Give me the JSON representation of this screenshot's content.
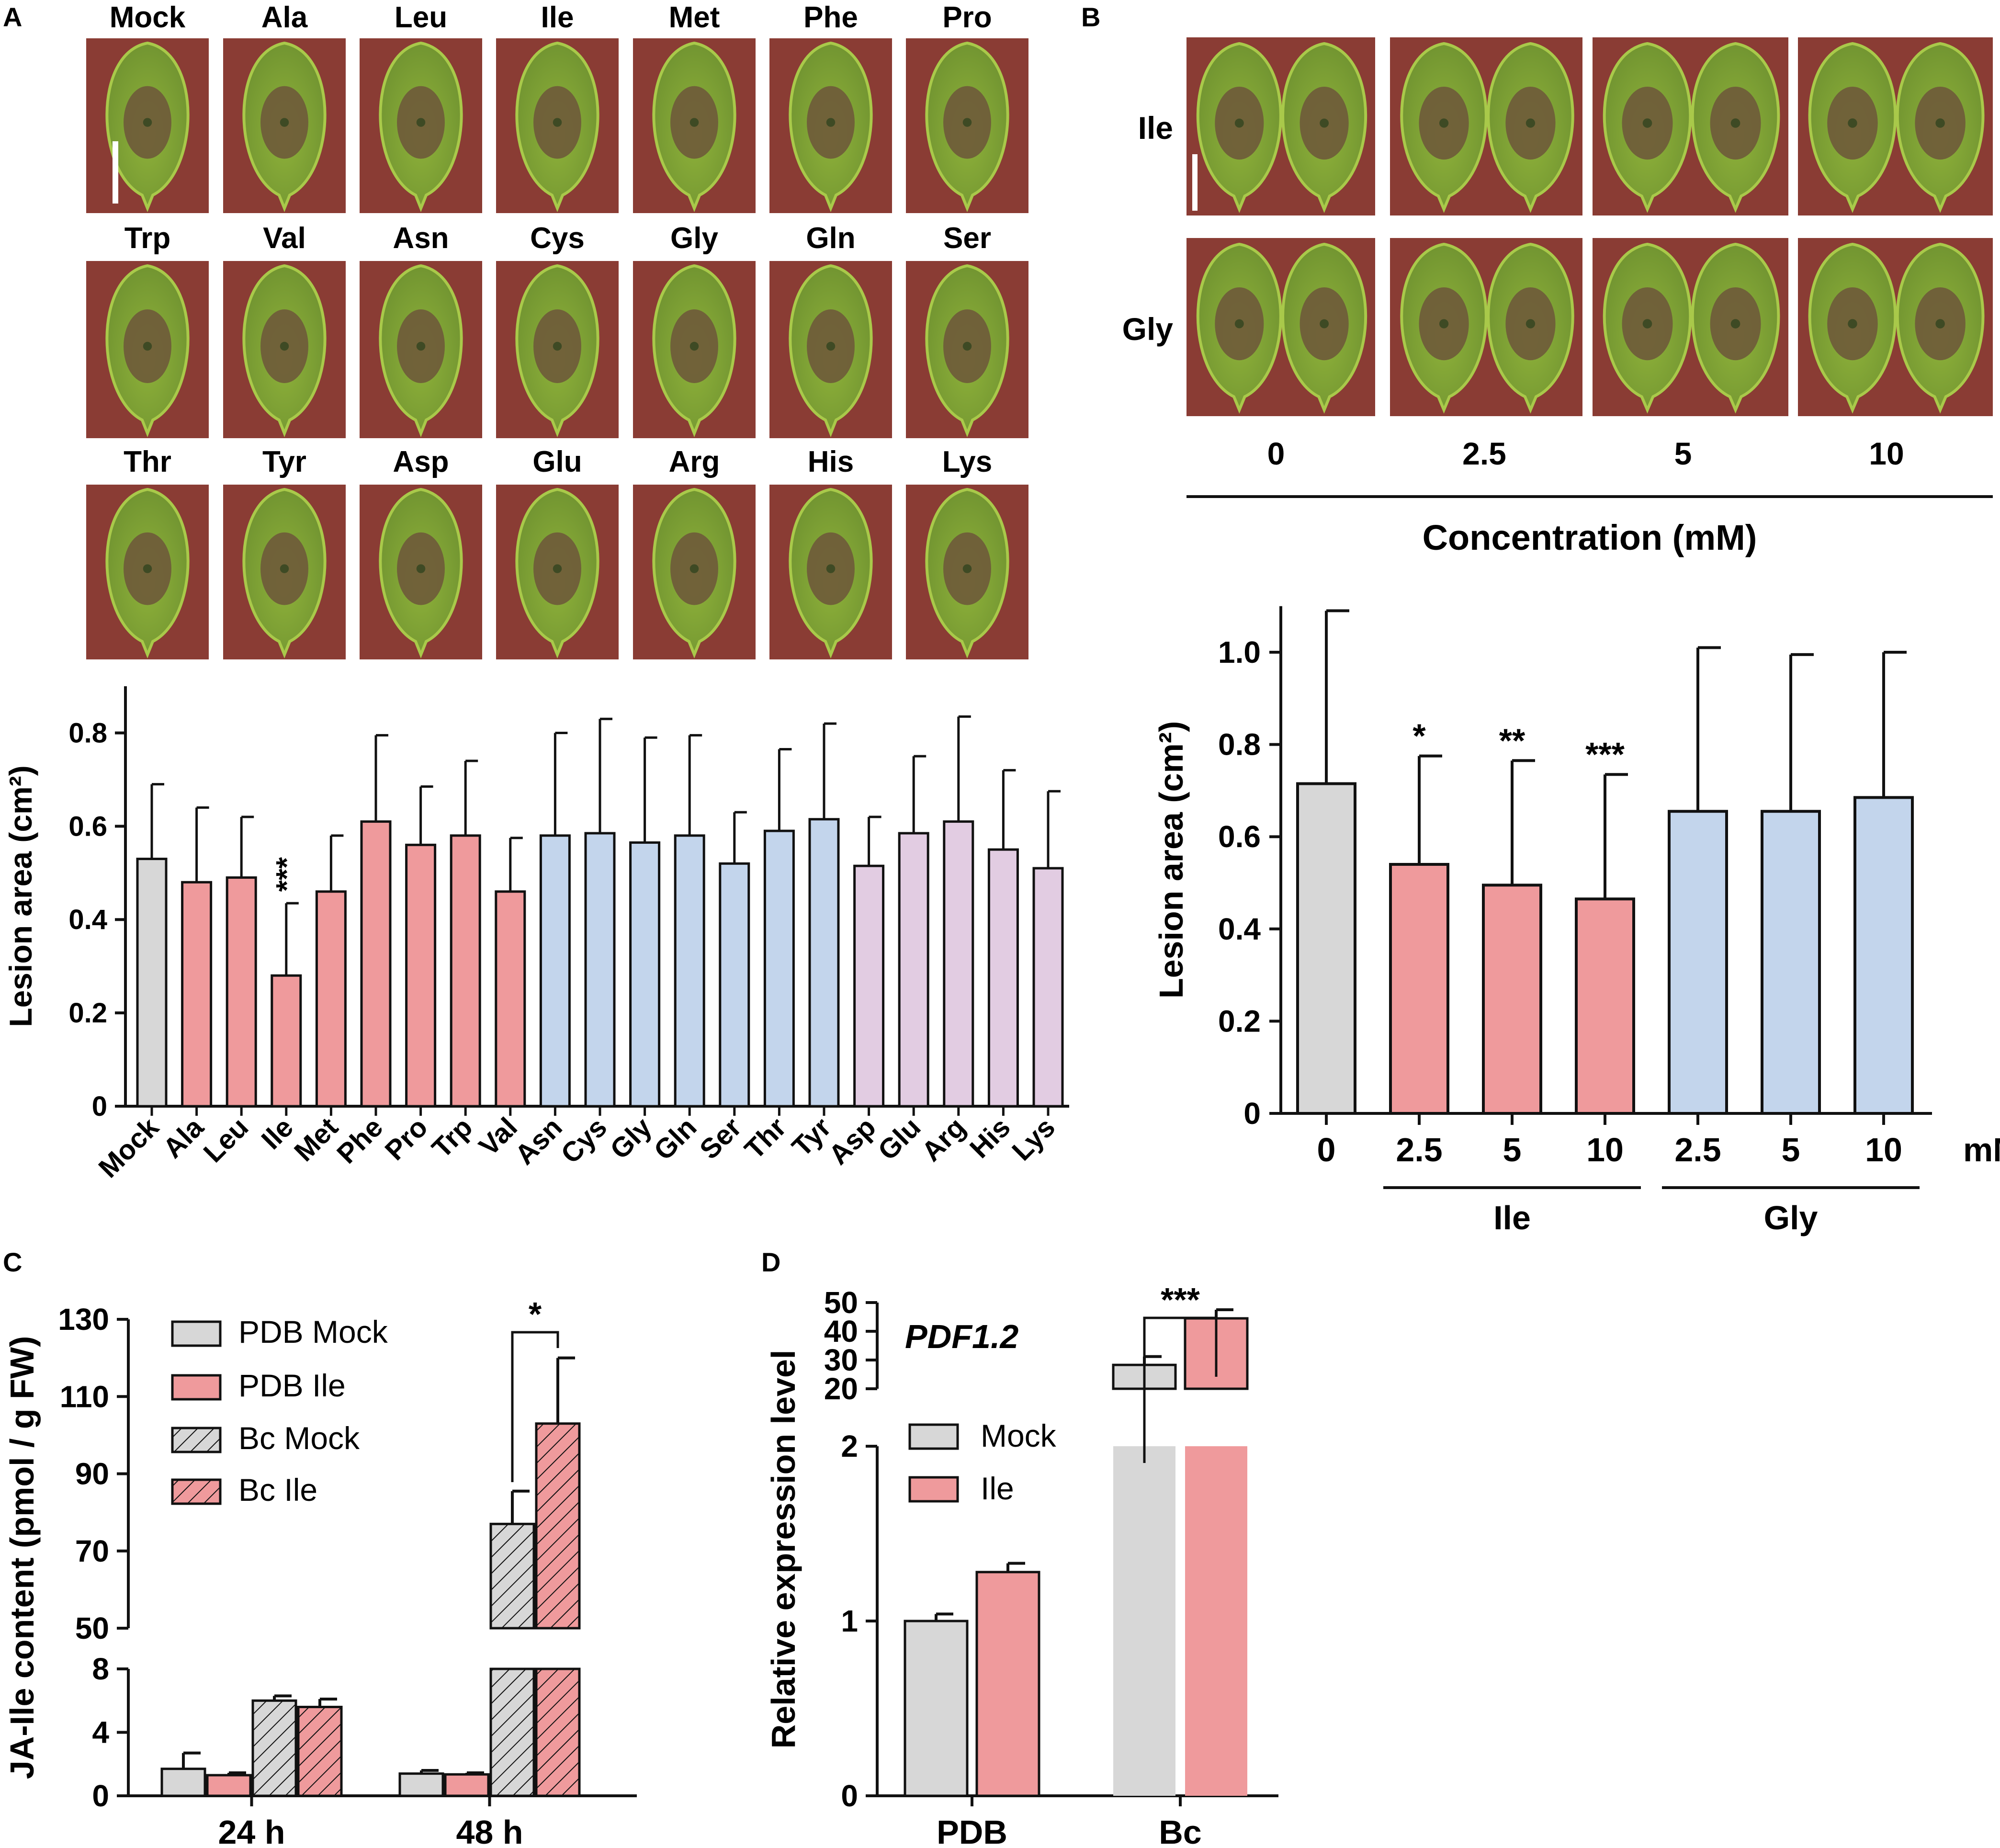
{
  "figure": {
    "colors": {
      "mock": "#d7d7d7",
      "nonpolar": "#ef9a9c",
      "polar": "#c3d5ec",
      "charged": "#e2cce2",
      "leaf_light": "#a9c94a",
      "leaf_dark": "#6f9230",
      "lesion": "#6e5a3a",
      "bg_photo": "#8a3c34",
      "axis": "#111111"
    },
    "panel_a": {
      "letter": "A",
      "photo_grid": [
        [
          "Mock",
          "Ala",
          "Leu",
          "Ile",
          "Met",
          "Phe",
          "Pro"
        ],
        [
          "Trp",
          "Val",
          "Asn",
          "Cys",
          "Gly",
          "Gln",
          "Ser"
        ],
        [
          "Thr",
          "Tyr",
          "Asp",
          "Glu",
          "Arg",
          "His",
          "Lys"
        ]
      ],
      "chart_data": {
        "type": "bar",
        "ylabel": "Lesion area (cm²)",
        "ylim": [
          0,
          0.9
        ],
        "yticks": [
          {
            "v": 0,
            "label": "0"
          },
          {
            "v": 0.2,
            "label": "0.2"
          },
          {
            "v": 0.4,
            "label": "0.4"
          },
          {
            "v": 0.6,
            "label": "0.6"
          },
          {
            "v": 0.8,
            "label": "0.8"
          }
        ],
        "bars": [
          {
            "label": "Mock",
            "value": 0.53,
            "err": 0.16,
            "group": "mock"
          },
          {
            "label": "Ala",
            "value": 0.48,
            "err": 0.16,
            "group": "nonpolar"
          },
          {
            "label": "Leu",
            "value": 0.49,
            "err": 0.13,
            "group": "nonpolar"
          },
          {
            "label": "Ile",
            "value": 0.28,
            "err": 0.155,
            "group": "nonpolar",
            "sig": "***"
          },
          {
            "label": "Met",
            "value": 0.46,
            "err": 0.12,
            "group": "nonpolar"
          },
          {
            "label": "Phe",
            "value": 0.61,
            "err": 0.185,
            "group": "nonpolar"
          },
          {
            "label": "Pro",
            "value": 0.56,
            "err": 0.125,
            "group": "nonpolar"
          },
          {
            "label": "Trp",
            "value": 0.58,
            "err": 0.16,
            "group": "nonpolar"
          },
          {
            "label": "Val",
            "value": 0.46,
            "err": 0.115,
            "group": "nonpolar"
          },
          {
            "label": "Asn",
            "value": 0.58,
            "err": 0.22,
            "group": "polar"
          },
          {
            "label": "Cys",
            "value": 0.585,
            "err": 0.245,
            "group": "polar"
          },
          {
            "label": "Gly",
            "value": 0.565,
            "err": 0.225,
            "group": "polar"
          },
          {
            "label": "Gln",
            "value": 0.58,
            "err": 0.215,
            "group": "polar"
          },
          {
            "label": "Ser",
            "value": 0.52,
            "err": 0.11,
            "group": "polar"
          },
          {
            "label": "Thr",
            "value": 0.59,
            "err": 0.175,
            "group": "polar"
          },
          {
            "label": "Tyr",
            "value": 0.615,
            "err": 0.205,
            "group": "polar"
          },
          {
            "label": "Asp",
            "value": 0.515,
            "err": 0.105,
            "group": "charged"
          },
          {
            "label": "Glu",
            "value": 0.585,
            "err": 0.165,
            "group": "charged"
          },
          {
            "label": "Arg",
            "value": 0.61,
            "err": 0.225,
            "group": "charged"
          },
          {
            "label": "His",
            "value": 0.55,
            "err": 0.17,
            "group": "charged"
          },
          {
            "label": "Lys",
            "value": 0.51,
            "err": 0.165,
            "group": "charged"
          }
        ]
      }
    },
    "panel_b": {
      "letter": "B",
      "photo_rows": [
        "Ile",
        "Gly"
      ],
      "photo_cols": [
        "0",
        "2.5",
        "5",
        "10"
      ],
      "photo_axis_label": "Concentration (mM)",
      "chart_data": {
        "type": "bar",
        "ylabel": "Lesion area (cm²)",
        "ylim": [
          0,
          1.1
        ],
        "yticks": [
          {
            "v": 0,
            "label": "0"
          },
          {
            "v": 0.2,
            "label": "0.2"
          },
          {
            "v": 0.4,
            "label": "0.4"
          },
          {
            "v": 0.6,
            "label": "0.6"
          },
          {
            "v": 0.8,
            "label": "0.8"
          },
          {
            "v": 1.0,
            "label": "1.0"
          }
        ],
        "unit_label": "mM",
        "bars": [
          {
            "label": "0",
            "value": 0.715,
            "err": 0.375,
            "group": "mock"
          },
          {
            "label": "2.5",
            "value": 0.54,
            "err": 0.235,
            "group": "nonpolar",
            "sig": "*"
          },
          {
            "label": "5",
            "value": 0.495,
            "err": 0.27,
            "group": "nonpolar",
            "sig": "**"
          },
          {
            "label": "10",
            "value": 0.465,
            "err": 0.27,
            "group": "nonpolar",
            "sig": "***"
          },
          {
            "label": "2.5",
            "value": 0.655,
            "err": 0.355,
            "group": "polar"
          },
          {
            "label": "5",
            "value": 0.655,
            "err": 0.34,
            "group": "polar"
          },
          {
            "label": "10",
            "value": 0.685,
            "err": 0.315,
            "group": "polar"
          }
        ],
        "groups": [
          {
            "label": "Ile",
            "from": 1,
            "to": 3
          },
          {
            "label": "Gly",
            "from": 4,
            "to": 6
          }
        ]
      }
    },
    "panel_c": {
      "letter": "C",
      "chart_data": {
        "type": "bar",
        "ylabel": "JA-Ile content (pmol / g FW)",
        "broken_axis": true,
        "upper_range": [
          50,
          130
        ],
        "lower_range": [
          0,
          8
        ],
        "upper_ticks": [
          "50",
          "70",
          "90",
          "110",
          "130"
        ],
        "lower_ticks": [
          "0",
          "4",
          "8"
        ],
        "categories": [
          "24 h",
          "48 h"
        ],
        "legend": [
          {
            "label": "PDB Mock",
            "color": "mock",
            "hatch": false
          },
          {
            "label": "PDB Ile",
            "color": "nonpolar",
            "hatch": false
          },
          {
            "label": "Bc Mock",
            "color": "mock",
            "hatch": true
          },
          {
            "label": "Bc Ile",
            "color": "nonpolar",
            "hatch": true
          }
        ],
        "series": [
          {
            "name": "PDB Mock",
            "values": [
              1.7,
              1.4
            ],
            "errs": [
              1.0,
              0.2
            ]
          },
          {
            "name": "PDB Ile",
            "values": [
              1.3,
              1.35
            ],
            "errs": [
              0.15,
              0.1
            ]
          },
          {
            "name": "Bc Mock",
            "values": [
              6.0,
              77
            ],
            "errs": [
              0.3,
              8.5
            ]
          },
          {
            "name": "Bc Ile",
            "values": [
              5.6,
              103
            ],
            "errs": [
              0.5,
              17
            ]
          }
        ],
        "sig": {
          "label": "*",
          "category": 1
        }
      }
    },
    "panel_d": {
      "letter": "D",
      "chart_data": {
        "type": "bar",
        "ylabel": "Relative expression level",
        "gene": "PDF1.2",
        "broken_axis": true,
        "upper_range": [
          20,
          50
        ],
        "lower_range": [
          0,
          2
        ],
        "upper_ticks": [
          "20",
          "30",
          "40",
          "50"
        ],
        "lower_ticks": [
          "0",
          "1",
          "2"
        ],
        "categories": [
          "PDB",
          "Bc"
        ],
        "legend": [
          {
            "label": "Mock",
            "color": "mock"
          },
          {
            "label": "Ile",
            "color": "nonpolar"
          }
        ],
        "series": [
          {
            "name": "Mock",
            "values": [
              1.0,
              28.3
            ],
            "errs": [
              0.04,
              2.9
            ]
          },
          {
            "name": "Ile",
            "values": [
              1.28,
              44.5
            ],
            "errs": [
              0.05,
              3.0
            ]
          }
        ],
        "sig": {
          "label": "***",
          "category": 1
        }
      }
    }
  }
}
